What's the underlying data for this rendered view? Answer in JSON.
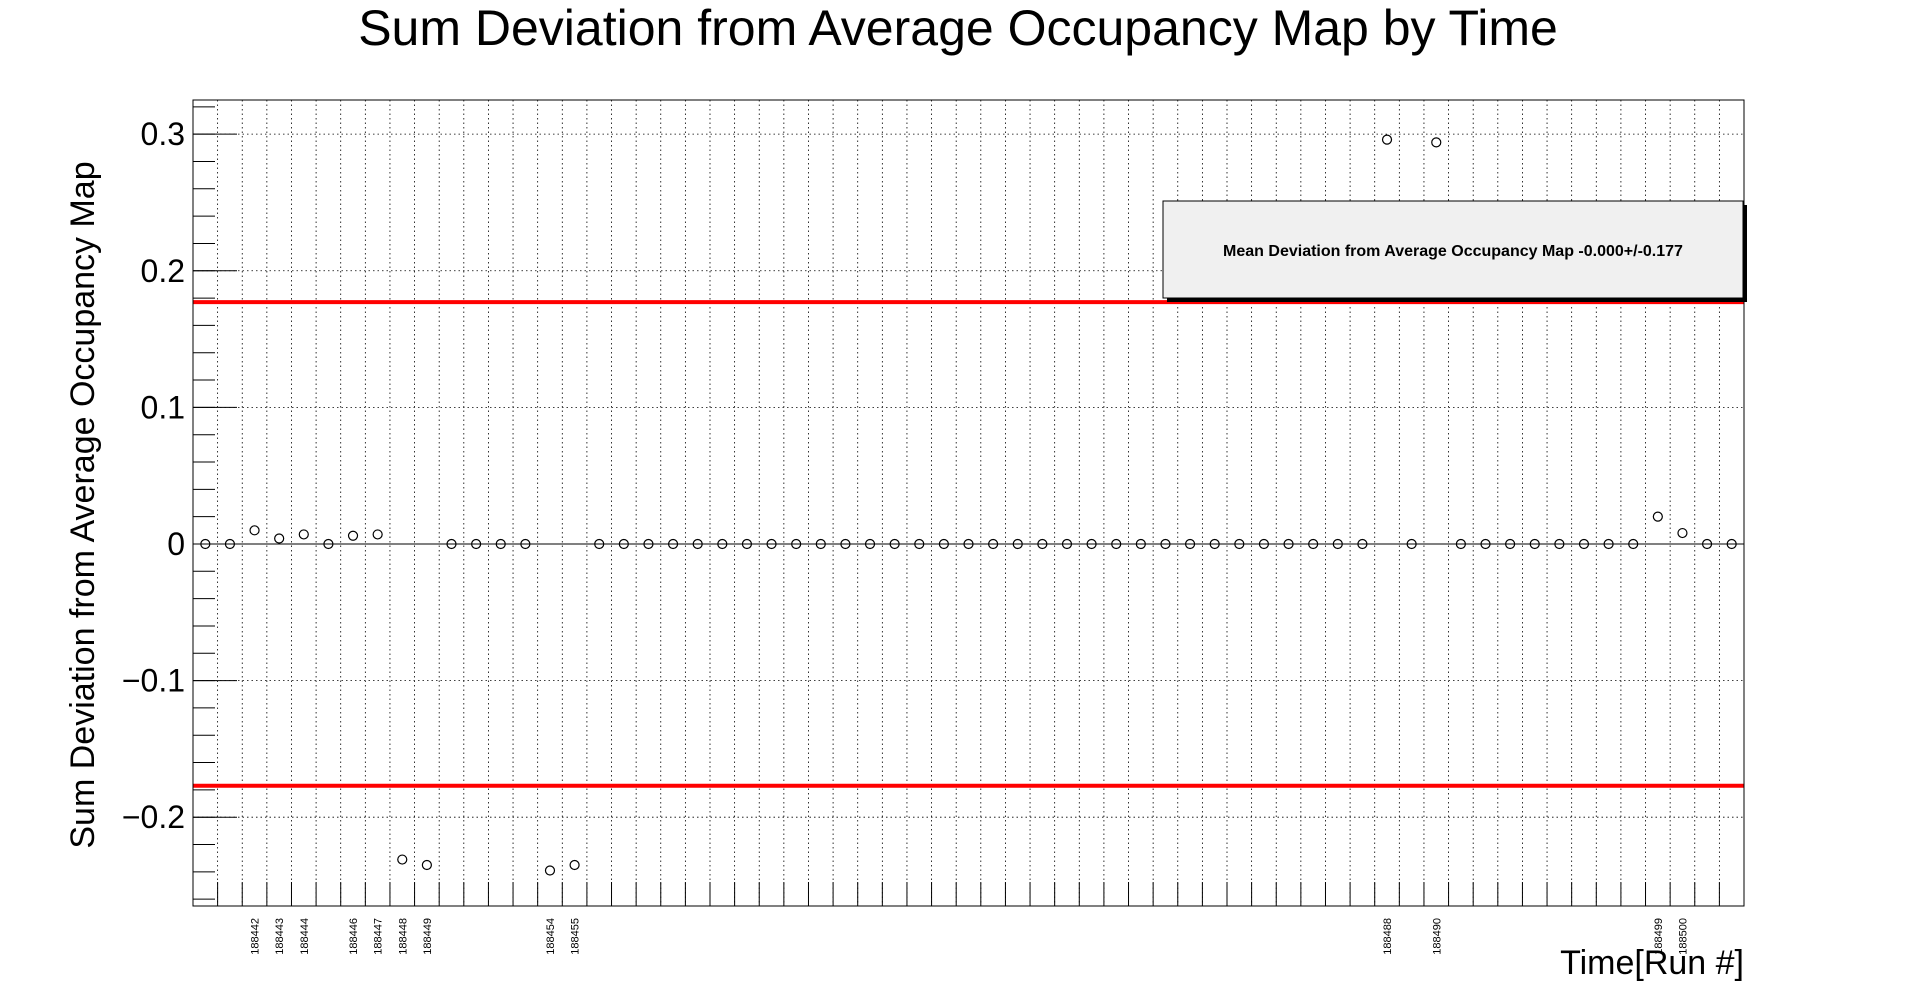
{
  "chart_data": {
    "type": "scatter",
    "title": "Sum Deviation from Average Occupancy Map by Time",
    "xlabel": "Time[Run #]",
    "ylabel": "Sum Deviation from Average Occupancy Map",
    "ylim": [
      -0.265,
      0.325
    ],
    "yticks": [
      -0.2,
      -0.1,
      0,
      0.1,
      0.2,
      0.3
    ],
    "ytick_labels": [
      "−0.2",
      "−0.1",
      "0",
      "0.1",
      "0.2",
      "0.3"
    ],
    "xlim": [
      0,
      63
    ],
    "grid": true,
    "x_tick_labels": [
      {
        "x": 2,
        "label": "188442"
      },
      {
        "x": 3,
        "label": "188443"
      },
      {
        "x": 4,
        "label": "188444"
      },
      {
        "x": 6,
        "label": "188446"
      },
      {
        "x": 7,
        "label": "188447"
      },
      {
        "x": 8,
        "label": "188448"
      },
      {
        "x": 9,
        "label": "188449"
      },
      {
        "x": 14,
        "label": "188454"
      },
      {
        "x": 15,
        "label": "188455"
      },
      {
        "x": 48,
        "label": "188488"
      },
      {
        "x": 50,
        "label": "188490"
      },
      {
        "x": 59,
        "label": "188499"
      },
      {
        "x": 60,
        "label": "188500"
      }
    ],
    "series": [
      {
        "x": [
          0,
          1,
          2,
          3,
          4,
          5,
          6,
          7,
          8,
          9,
          10,
          11,
          12,
          13,
          14,
          15,
          16,
          17,
          18,
          19,
          20,
          21,
          22,
          23,
          24,
          25,
          26,
          27,
          28,
          29,
          30,
          31,
          32,
          33,
          34,
          35,
          36,
          37,
          38,
          39,
          40,
          41,
          42,
          43,
          44,
          45,
          46,
          47,
          48,
          49,
          50,
          51,
          52,
          53,
          54,
          55,
          56,
          57,
          58,
          59,
          60,
          61,
          62
        ],
        "y": [
          0,
          0,
          0.01,
          0.004,
          0.007,
          0,
          0.006,
          0.007,
          -0.231,
          -0.235,
          0,
          0,
          0,
          0,
          -0.239,
          -0.235,
          0,
          0,
          0,
          0,
          0,
          0,
          0,
          0,
          0,
          0,
          0,
          0,
          0,
          0,
          0,
          0,
          0,
          0,
          0,
          0,
          0,
          0,
          0,
          0,
          0,
          0,
          0,
          0,
          0,
          0,
          0,
          0,
          0.296,
          0,
          0.294,
          0,
          0,
          0,
          0,
          0,
          0,
          0,
          0,
          0.02,
          0.008,
          0,
          0
        ]
      }
    ],
    "reference_lines": [
      0.177,
      -0.177
    ],
    "reference_color": "#ff0000",
    "legend": {
      "text": "Mean Deviation from Average Occupancy Map -0.000+/-0.177",
      "placement": "top-right"
    }
  }
}
